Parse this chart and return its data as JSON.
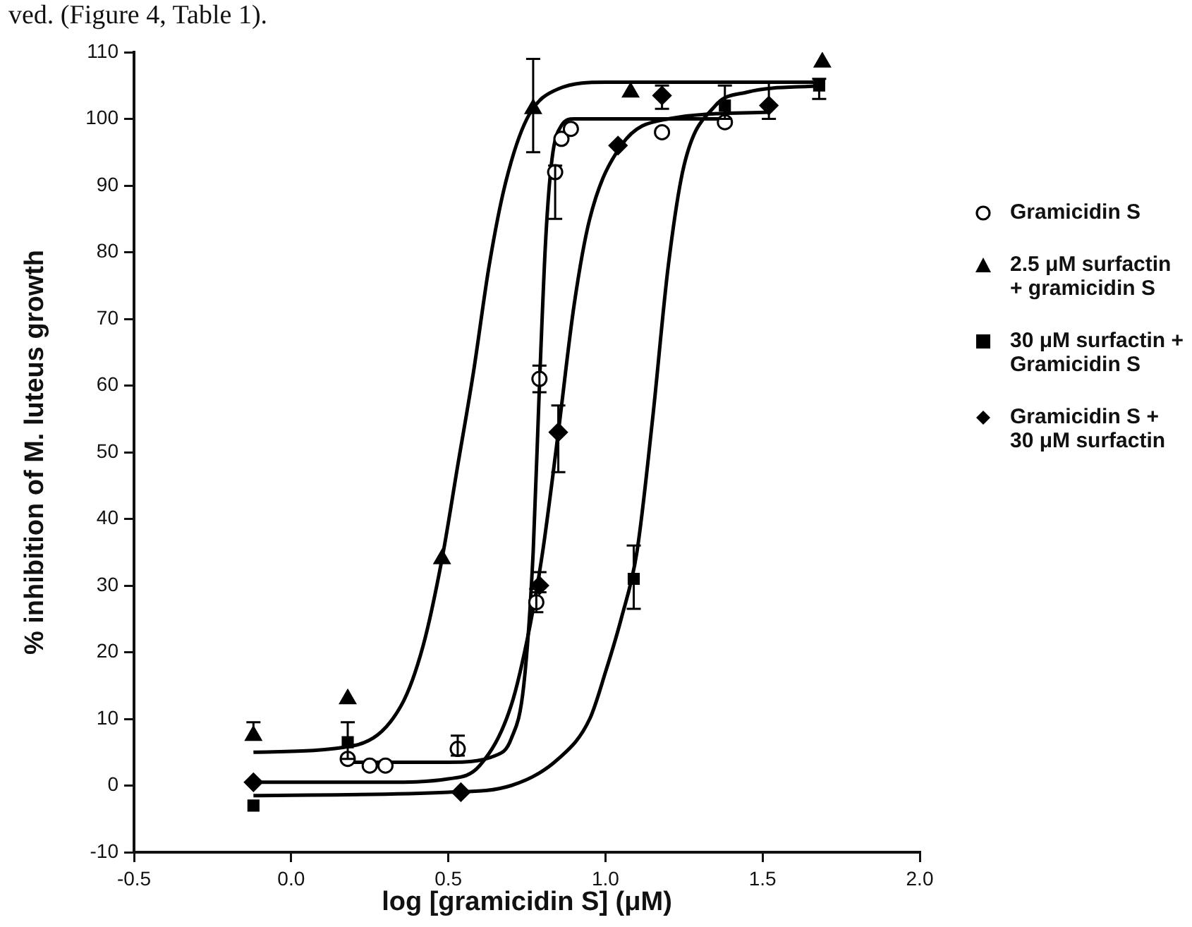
{
  "chart_data": {
    "type": "scatter",
    "xlabel": "log [gramicidin S] (μM)",
    "ylabel": "% inhibition of M. luteus growth",
    "annotations": [
      "ved. (Figure 4, Table 1)."
    ],
    "xlim": [
      -0.5,
      2.0
    ],
    "xticks": [
      -0.5,
      {
        "value": 0,
        "label": "0.0"
      },
      0.5,
      {
        "value": 1,
        "label": "1.0"
      },
      1.5,
      {
        "value": 2,
        "label": "2.0"
      }
    ],
    "ylim": [
      -10,
      110
    ],
    "yticks": [
      -10,
      0,
      10,
      20,
      30,
      40,
      50,
      60,
      70,
      80,
      90,
      100,
      110
    ],
    "grid": false,
    "legend": "right",
    "line_style": "solid",
    "series": [
      {
        "type": "line",
        "marker": "none",
        "color": "#000000",
        "x": [
          0.18,
          0.5,
          0.65,
          0.7,
          0.74,
          0.77,
          0.79,
          0.81,
          0.83,
          0.86,
          0.9,
          1.38
        ],
        "values": [
          3.5,
          3.5,
          4.5,
          7,
          15,
          35,
          60,
          82,
          94,
          99,
          100,
          100
        ]
      },
      {
        "type": "line",
        "marker": "none",
        "color": "#000000",
        "x": [
          -0.12,
          0.2,
          0.35,
          0.42,
          0.48,
          0.53,
          0.58,
          0.63,
          0.68,
          0.75,
          0.85,
          1.0,
          1.69
        ],
        "values": [
          5,
          6,
          12,
          21,
          34,
          48,
          62,
          78,
          90,
          100,
          104.5,
          105.5,
          105.5
        ]
      },
      {
        "type": "line",
        "marker": "none",
        "color": "#000000",
        "x": [
          -0.12,
          0.5,
          0.7,
          0.85,
          0.95,
          1.0,
          1.05,
          1.1,
          1.15,
          1.2,
          1.25,
          1.35,
          1.45,
          1.69
        ],
        "values": [
          -1.5,
          -1,
          0,
          4,
          10,
          17,
          25,
          35,
          55,
          78,
          93,
          102,
          104,
          105
        ]
      },
      {
        "type": "line",
        "marker": "none",
        "color": "#000000",
        "x": [
          -0.12,
          0.3,
          0.5,
          0.6,
          0.7,
          0.76,
          0.8,
          0.85,
          0.9,
          0.95,
          1.05,
          1.2,
          1.52
        ],
        "values": [
          0.5,
          0.5,
          1,
          3,
          12,
          24,
          35,
          53,
          72,
          85,
          96,
          100,
          101
        ]
      },
      {
        "name": "Gramicidin S",
        "marker": "circle",
        "color": "#000000",
        "x": [
          0.18,
          0.25,
          0.3,
          0.53,
          0.78,
          0.79,
          0.84,
          0.86,
          0.89,
          1.18,
          1.38
        ],
        "values": [
          4,
          3,
          3,
          5.5,
          27.5,
          61,
          92,
          97,
          98.5,
          98,
          99.5
        ],
        "errors": [
          null,
          null,
          null,
          [
            4.5,
            7.5
          ],
          [
            26,
            29.5
          ],
          [
            59,
            63
          ],
          [
            85,
            93
          ],
          null,
          null,
          null,
          null
        ]
      },
      {
        "name": "2.5 μM surfactin + gramicidin S",
        "marker": "triangle",
        "color": "#000000",
        "x": [
          -0.12,
          0.18,
          0.48,
          0.77,
          1.08,
          1.69
        ],
        "values": [
          7.5,
          13,
          34,
          101.5,
          104,
          108.5
        ],
        "errors": [
          [
            7,
            9.5
          ],
          null,
          null,
          [
            95,
            109
          ],
          null,
          null
        ]
      },
      {
        "name": "30 μM surfactin + Gramicidin S",
        "marker": "square",
        "color": "#000000",
        "x": [
          -0.12,
          0.18,
          1.09,
          1.38,
          1.68
        ],
        "values": [
          -3,
          6.5,
          31,
          102,
          105
        ],
        "errors": [
          null,
          [
            4,
            9.5
          ],
          [
            26.5,
            36
          ],
          [
            100,
            105
          ],
          [
            103,
            106
          ]
        ]
      },
      {
        "name": "Gramicidin S + 30 μM surfactin",
        "marker": "diamond",
        "color": "#000000",
        "x": [
          -0.12,
          0.54,
          0.79,
          0.85,
          1.04,
          1.18,
          1.52
        ],
        "values": [
          0.5,
          -1,
          30,
          53,
          96,
          103.5,
          102
        ],
        "errors": [
          null,
          null,
          [
            29,
            32
          ],
          [
            47,
            57
          ],
          null,
          [
            101.5,
            105
          ],
          [
            100,
            105.5
          ]
        ]
      }
    ]
  }
}
